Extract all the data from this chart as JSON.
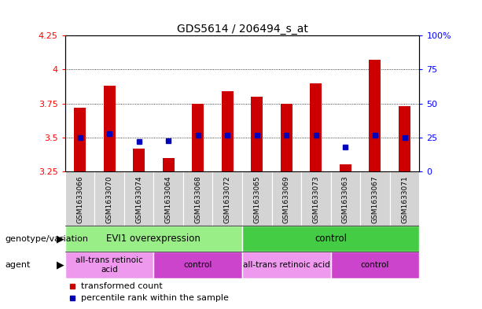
{
  "title": "GDS5614 / 206494_s_at",
  "samples": [
    "GSM1633066",
    "GSM1633070",
    "GSM1633074",
    "GSM1633064",
    "GSM1633068",
    "GSM1633072",
    "GSM1633065",
    "GSM1633069",
    "GSM1633073",
    "GSM1633063",
    "GSM1633067",
    "GSM1633071"
  ],
  "bar_values": [
    3.72,
    3.88,
    3.42,
    3.35,
    3.75,
    3.84,
    3.8,
    3.75,
    3.9,
    3.3,
    4.07,
    3.73
  ],
  "bar_base": 3.25,
  "percentile_values": [
    3.5,
    3.53,
    3.47,
    3.475,
    3.515,
    3.515,
    3.515,
    3.515,
    3.515,
    3.43,
    3.515,
    3.5
  ],
  "ylim": [
    3.25,
    4.25
  ],
  "yticks": [
    3.25,
    3.5,
    3.75,
    4.0,
    4.25
  ],
  "ytick_labels": [
    "3.25",
    "3.5",
    "3.75",
    "4",
    "4.25"
  ],
  "right_yticks": [
    0,
    25,
    50,
    75,
    100
  ],
  "right_ytick_labels": [
    "0",
    "25",
    "50",
    "75",
    "100%"
  ],
  "bar_color": "#cc0000",
  "percentile_color": "#0000bb",
  "plot_bg_color": "#ffffff",
  "label_bg_color": "#d4d4d4",
  "genotype_groups": [
    {
      "label": "EVI1 overexpression",
      "start": 0,
      "end": 6,
      "color": "#99ee88"
    },
    {
      "label": "control",
      "start": 6,
      "end": 12,
      "color": "#44cc44"
    }
  ],
  "agent_groups": [
    {
      "label": "all-trans retinoic\nacid",
      "start": 0,
      "end": 3,
      "color": "#ee99ee"
    },
    {
      "label": "control",
      "start": 3,
      "end": 6,
      "color": "#cc44cc"
    },
    {
      "label": "all-trans retinoic acid",
      "start": 6,
      "end": 9,
      "color": "#ee99ee"
    },
    {
      "label": "control",
      "start": 9,
      "end": 12,
      "color": "#cc44cc"
    }
  ],
  "legend_red_label": "transformed count",
  "legend_blue_label": "percentile rank within the sample",
  "genotype_label": "genotype/variation",
  "agent_label": "agent",
  "fig_width": 6.13,
  "fig_height": 3.93,
  "fig_dpi": 100
}
